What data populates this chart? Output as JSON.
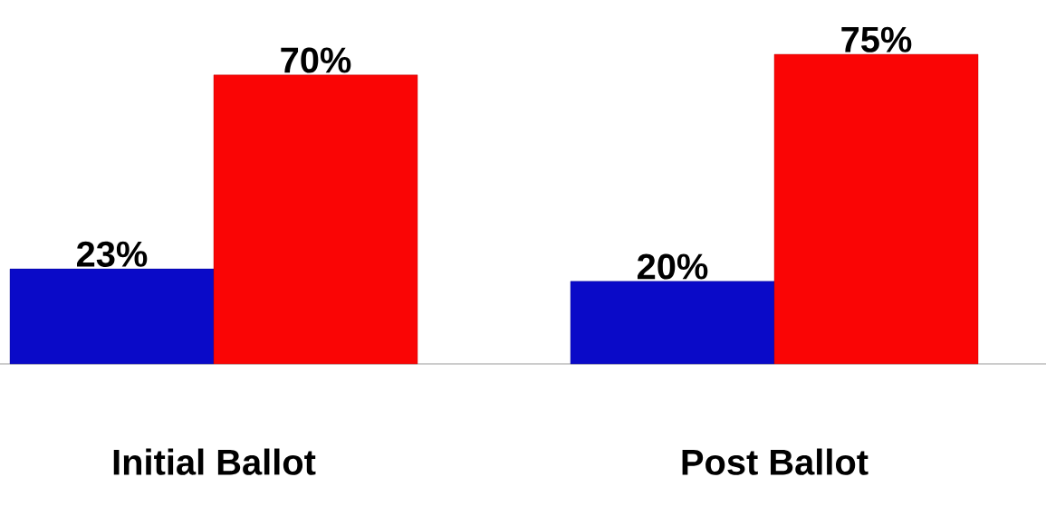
{
  "chart_data": {
    "type": "bar",
    "categories": [
      "Initial Ballot",
      "Post Ballot"
    ],
    "series": [
      {
        "color": "#0a0ac8",
        "values": [
          23,
          20
        ],
        "value_labels": [
          "23%",
          "20%"
        ]
      },
      {
        "color": "#fa0505",
        "values": [
          70,
          75
        ],
        "value_labels": [
          "70%",
          "75%"
        ]
      }
    ]
  }
}
